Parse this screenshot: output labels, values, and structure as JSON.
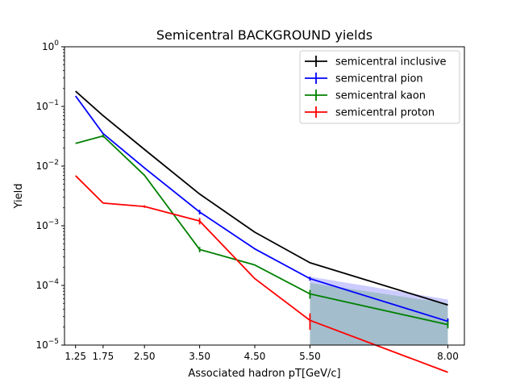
{
  "chart_data": {
    "type": "line",
    "title": "Semicentral BACKGROUND yields",
    "xlabel": "Associated hadron pT[GeV/c]",
    "ylabel": "Yield",
    "x": [
      1.25,
      1.75,
      2.5,
      3.5,
      4.5,
      5.5,
      8.0
    ],
    "x_tick_labels": [
      "1.25",
      "1.75",
      "2.50",
      "3.50",
      "4.50",
      "5.50",
      "8.00"
    ],
    "xlim": [
      1.05,
      8.3
    ],
    "ylim": [
      1e-05,
      1
    ],
    "y_scale": "log",
    "y_ticks": [
      {
        "value": 1,
        "exp": "0"
      },
      {
        "value": 0.1,
        "exp": "−1"
      },
      {
        "value": 0.01,
        "exp": "−2"
      },
      {
        "value": 0.001,
        "exp": "−3"
      },
      {
        "value": 0.0001,
        "exp": "−4"
      },
      {
        "value": 1e-05,
        "exp": "−5"
      }
    ],
    "legend_position": "top-right",
    "grid": false,
    "series": [
      {
        "name": "semicentral inclusive",
        "color": "#000000",
        "values": [
          0.18,
          0.07,
          0.019,
          0.0034,
          0.00078,
          0.00024,
          4.7e-05
        ],
        "errors": [
          0,
          0,
          0,
          0,
          0,
          0,
          0
        ]
      },
      {
        "name": "semicentral pion",
        "color": "#0000ff",
        "values": [
          0.15,
          0.035,
          0.0093,
          0.0017,
          0.00041,
          0.00013,
          2.5e-05
        ],
        "errors": [
          0,
          0,
          0,
          0.00015,
          0,
          1e-05,
          3e-06
        ]
      },
      {
        "name": "semicentral kaon",
        "color": "#008000",
        "values": [
          0.024,
          0.032,
          0.007,
          0.0004,
          0.00022,
          7.2e-05,
          2.2e-05
        ],
        "errors": [
          0,
          0.002,
          0,
          4e-05,
          0,
          1.2e-05,
          3e-06
        ]
      },
      {
        "name": "semicentral proton",
        "color": "#ff0000",
        "values": [
          0.0069,
          0.0024,
          0.0021,
          0.0012,
          0.00013,
          2.6e-05,
          3.5e-06
        ],
        "errors": [
          0,
          0,
          0.0001,
          0.00015,
          0,
          8e-06,
          2e-06
        ]
      }
    ],
    "bands": [
      {
        "color": "#0000ff",
        "x": [
          5.5,
          8.0
        ],
        "upper": [
          0.00014,
          5.8e-05
        ],
        "lower": [
          1e-05,
          1e-05
        ]
      },
      {
        "color": "#008000",
        "x": [
          5.5,
          8.0
        ],
        "upper": [
          0.00011,
          5e-05
        ],
        "lower": [
          1e-05,
          1e-05
        ]
      }
    ]
  }
}
